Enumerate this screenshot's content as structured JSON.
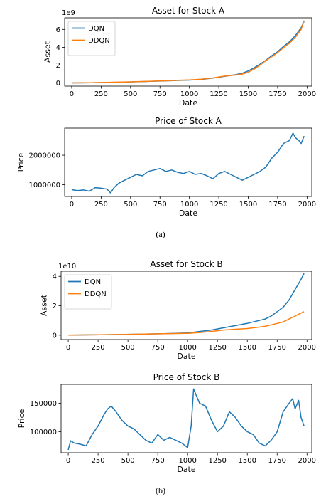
{
  "figures": [
    {
      "caption": "(a)",
      "charts": [
        {
          "type": "line",
          "title": "Asset for Stock A",
          "xlabel": "Date",
          "ylabel": "Asset",
          "scale_note": "1e9",
          "xlim": [
            -60,
            2040
          ],
          "ylim": [
            -0.35,
            7.3
          ],
          "xticks": [
            0,
            250,
            500,
            750,
            1000,
            1250,
            1500,
            1750,
            2000
          ],
          "yticks": [
            0,
            2,
            4,
            6
          ],
          "ytick_labels": [
            "0",
            "2",
            "4",
            "6"
          ],
          "grid": false,
          "legend": "top-left",
          "series": [
            {
              "name": "DQN",
              "color": "#1f77b4",
              "x": [
                0,
                100,
                200,
                300,
                400,
                500,
                600,
                700,
                800,
                900,
                1000,
                1100,
                1200,
                1300,
                1400,
                1450,
                1500,
                1550,
                1600,
                1650,
                1700,
                1750,
                1800,
                1850,
                1900,
                1950,
                1975
              ],
              "y": [
                0.01,
                0.02,
                0.04,
                0.06,
                0.09,
                0.12,
                0.16,
                0.2,
                0.24,
                0.29,
                0.33,
                0.4,
                0.55,
                0.75,
                0.95,
                1.1,
                1.35,
                1.7,
                2.1,
                2.55,
                3.05,
                3.5,
                4.1,
                4.6,
                5.3,
                6.2,
                6.9
              ]
            },
            {
              "name": "DDQN",
              "color": "#ff7f0e",
              "x": [
                0,
                100,
                200,
                300,
                400,
                500,
                600,
                700,
                800,
                900,
                1000,
                1100,
                1200,
                1300,
                1400,
                1450,
                1500,
                1550,
                1600,
                1650,
                1700,
                1750,
                1800,
                1850,
                1900,
                1950,
                1975
              ],
              "y": [
                0.01,
                0.02,
                0.04,
                0.07,
                0.1,
                0.13,
                0.17,
                0.21,
                0.25,
                0.3,
                0.34,
                0.42,
                0.57,
                0.77,
                0.9,
                1.0,
                1.2,
                1.55,
                2.0,
                2.5,
                2.95,
                3.4,
                3.95,
                4.45,
                5.1,
                6.0,
                7.0
              ]
            }
          ]
        },
        {
          "type": "line",
          "title": "Price of Stock A",
          "xlabel": "Date",
          "ylabel": "Price",
          "scale_note": "",
          "xlim": [
            -60,
            2040
          ],
          "ylim": [
            600000,
            2920000
          ],
          "xticks": [
            0,
            250,
            500,
            750,
            1000,
            1250,
            1500,
            1750,
            2000
          ],
          "yticks": [
            1000000,
            2000000
          ],
          "ytick_labels": [
            "1000000",
            "2000000"
          ],
          "grid": false,
          "legend": "none",
          "series": [
            {
              "name": "",
              "color": "#1f77b4",
              "x": [
                0,
                50,
                100,
                150,
                200,
                250,
                300,
                330,
                360,
                400,
                450,
                500,
                550,
                600,
                650,
                700,
                750,
                800,
                850,
                900,
                950,
                1000,
                1050,
                1100,
                1150,
                1200,
                1250,
                1300,
                1350,
                1400,
                1450,
                1500,
                1550,
                1600,
                1650,
                1700,
                1750,
                1800,
                1850,
                1880,
                1900,
                1930,
                1950,
                1975
              ],
              "y": [
                830000,
                800000,
                820000,
                780000,
                900000,
                880000,
                850000,
                720000,
                900000,
                1050000,
                1150000,
                1250000,
                1350000,
                1300000,
                1450000,
                1500000,
                1550000,
                1450000,
                1500000,
                1420000,
                1380000,
                1450000,
                1350000,
                1380000,
                1300000,
                1200000,
                1380000,
                1450000,
                1350000,
                1250000,
                1150000,
                1250000,
                1350000,
                1450000,
                1600000,
                1900000,
                2100000,
                2400000,
                2500000,
                2750000,
                2600000,
                2500000,
                2400000,
                2650000
              ]
            }
          ]
        }
      ]
    },
    {
      "caption": "(b)",
      "charts": [
        {
          "type": "line",
          "title": "Asset for Stock B",
          "xlabel": "Date",
          "ylabel": "Asset",
          "scale_note": "1e10",
          "xlim": [
            -60,
            2040
          ],
          "ylim": [
            -0.3,
            4.35
          ],
          "xticks": [
            0,
            250,
            500,
            750,
            1000,
            1250,
            1500,
            1750,
            2000
          ],
          "yticks": [
            0,
            2,
            4
          ],
          "ytick_labels": [
            "0",
            "2",
            "4"
          ],
          "grid": false,
          "legend": "top-left",
          "series": [
            {
              "name": "DQN",
              "color": "#1f77b4",
              "x": [
                0,
                200,
                400,
                600,
                800,
                1000,
                1100,
                1200,
                1300,
                1400,
                1500,
                1550,
                1600,
                1650,
                1700,
                1750,
                1800,
                1850,
                1900,
                1950,
                1975
              ],
              "y": [
                0.0,
                0.02,
                0.04,
                0.07,
                0.1,
                0.15,
                0.25,
                0.35,
                0.5,
                0.65,
                0.8,
                0.9,
                1.0,
                1.1,
                1.3,
                1.6,
                1.9,
                2.4,
                3.1,
                3.8,
                4.2
              ]
            },
            {
              "name": "DDQN",
              "color": "#ff7f0e",
              "x": [
                0,
                200,
                400,
                600,
                800,
                1000,
                1100,
                1200,
                1300,
                1400,
                1500,
                1550,
                1600,
                1650,
                1700,
                1750,
                1800,
                1850,
                1900,
                1950,
                1975
              ],
              "y": [
                0.0,
                0.02,
                0.04,
                0.07,
                0.1,
                0.12,
                0.18,
                0.25,
                0.35,
                0.4,
                0.45,
                0.5,
                0.55,
                0.6,
                0.7,
                0.8,
                0.9,
                1.1,
                1.3,
                1.5,
                1.6
              ]
            }
          ]
        },
        {
          "type": "line",
          "title": "Price of Stock B",
          "xlabel": "Date",
          "ylabel": "Price",
          "scale_note": "",
          "xlim": [
            -60,
            2040
          ],
          "ylim": [
            63000,
            183000
          ],
          "xticks": [
            0,
            250,
            500,
            750,
            1000,
            1250,
            1500,
            1750,
            2000
          ],
          "yticks": [
            100000,
            150000
          ],
          "ytick_labels": [
            "100000",
            "150000"
          ],
          "grid": false,
          "legend": "none",
          "series": [
            {
              "name": "",
              "color": "#1f77b4",
              "x": [
                0,
                20,
                50,
                100,
                150,
                200,
                250,
                300,
                330,
                360,
                400,
                450,
                500,
                550,
                600,
                650,
                700,
                750,
                800,
                850,
                900,
                950,
                1000,
                1030,
                1050,
                1080,
                1100,
                1150,
                1200,
                1250,
                1300,
                1350,
                1400,
                1450,
                1500,
                1550,
                1600,
                1650,
                1700,
                1750,
                1800,
                1850,
                1880,
                1900,
                1930,
                1950,
                1975
              ],
              "y": [
                68000,
                84000,
                80000,
                78000,
                75000,
                95000,
                110000,
                130000,
                140000,
                145000,
                135000,
                120000,
                110000,
                105000,
                95000,
                85000,
                80000,
                95000,
                85000,
                90000,
                85000,
                80000,
                72000,
                110000,
                175000,
                160000,
                150000,
                145000,
                120000,
                100000,
                110000,
                135000,
                125000,
                110000,
                100000,
                95000,
                80000,
                75000,
                85000,
                100000,
                135000,
                150000,
                158000,
                140000,
                155000,
                125000,
                110000
              ]
            }
          ]
        }
      ]
    }
  ]
}
